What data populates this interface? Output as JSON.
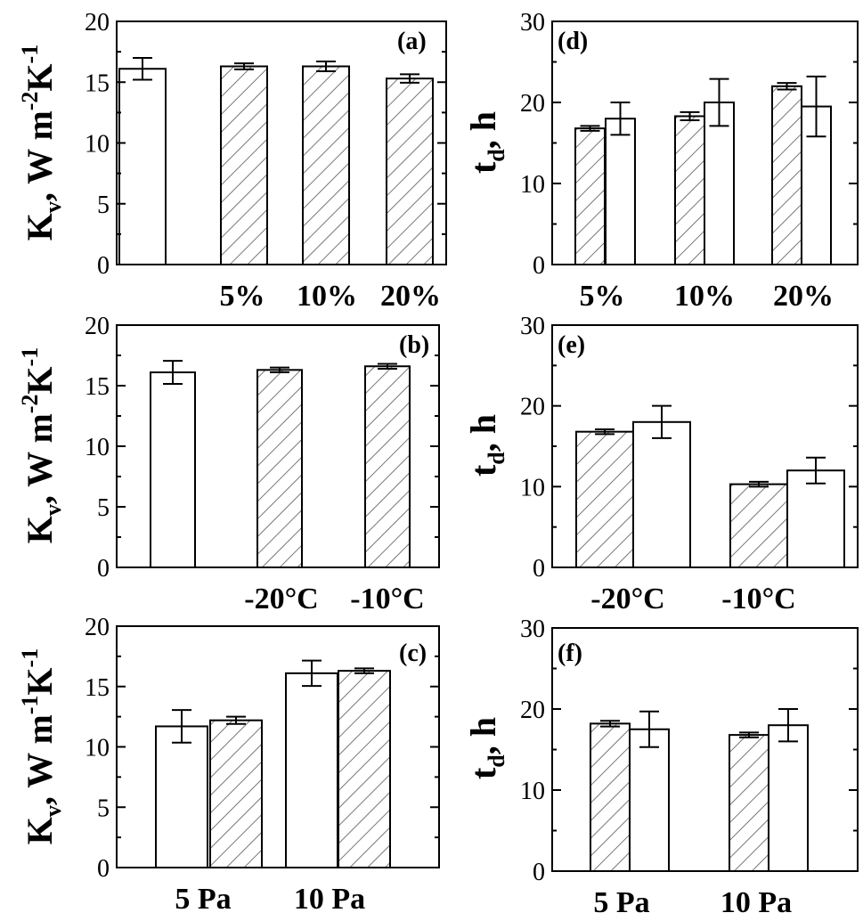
{
  "chart_data": [
    {
      "panel": "(a)",
      "type": "bar",
      "ylabel": {
        "main": "K",
        "sub": "v",
        "mid": ", W m",
        "sup1": "-2",
        "k": "K",
        "sup2": "-1"
      },
      "ylim": [
        0,
        20
      ],
      "yticks": [
        0,
        5,
        10,
        15,
        20
      ],
      "categories": [
        "",
        "5%",
        "10%",
        "20%"
      ],
      "bars": [
        {
          "category": "",
          "value": 16.1,
          "error": 0.9,
          "fill": "plain"
        },
        {
          "category": "5%",
          "value": 16.3,
          "error": 0.25,
          "fill": "hatched"
        },
        {
          "category": "10%",
          "value": 16.3,
          "error": 0.4,
          "fill": "hatched"
        },
        {
          "category": "20%",
          "value": 15.3,
          "error": 0.35,
          "fill": "hatched"
        }
      ]
    },
    {
      "panel": "(b)",
      "type": "bar",
      "ylabel": {
        "main": "K",
        "sub": "v",
        "mid": ", W m",
        "sup1": "-2",
        "k": "K",
        "sup2": "-1"
      },
      "ylim": [
        0,
        20
      ],
      "yticks": [
        0,
        5,
        10,
        15,
        20
      ],
      "categories": [
        "",
        "-20°C",
        "-10°C"
      ],
      "bars": [
        {
          "category": "",
          "value": 16.1,
          "error": 0.95,
          "fill": "plain"
        },
        {
          "category": "-20°C",
          "value": 16.3,
          "error": 0.2,
          "fill": "hatched"
        },
        {
          "category": "-10°C",
          "value": 16.6,
          "error": 0.2,
          "fill": "hatched"
        }
      ]
    },
    {
      "panel": "(c)",
      "type": "bar",
      "ylabel": {
        "main": "K",
        "sub": "v",
        "mid": ", W m",
        "sup1": "-1",
        "k": "K",
        "sup2": "-1"
      },
      "ylim": [
        0,
        20
      ],
      "yticks": [
        0,
        5,
        10,
        15,
        20
      ],
      "categories": [
        "5 Pa",
        "10 Pa"
      ],
      "bars": [
        {
          "category": "5 Pa",
          "value": 11.7,
          "error": 1.35,
          "fill": "plain"
        },
        {
          "category": "5 Pa",
          "value": 12.2,
          "error": 0.3,
          "fill": "hatched"
        },
        {
          "category": "10 Pa",
          "value": 16.1,
          "error": 1.05,
          "fill": "plain"
        },
        {
          "category": "10 Pa",
          "value": 16.3,
          "error": 0.2,
          "fill": "hatched"
        }
      ]
    },
    {
      "panel": "(d)",
      "type": "bar",
      "ylabel": {
        "main": "t",
        "sub": "d",
        "mid": ", h"
      },
      "ylim": [
        0,
        30
      ],
      "yticks": [
        0,
        10,
        20,
        30
      ],
      "categories": [
        "5%",
        "10%",
        "20%"
      ],
      "bars": [
        {
          "category": "5%",
          "value": 16.8,
          "error": 0.3,
          "fill": "hatched"
        },
        {
          "category": "5%",
          "value": 18.0,
          "error": 2.0,
          "fill": "plain"
        },
        {
          "category": "10%",
          "value": 18.3,
          "error": 0.5,
          "fill": "hatched"
        },
        {
          "category": "10%",
          "value": 20.0,
          "error": 2.9,
          "fill": "plain"
        },
        {
          "category": "20%",
          "value": 22.0,
          "error": 0.4,
          "fill": "hatched"
        },
        {
          "category": "20%",
          "value": 19.5,
          "error": 3.7,
          "fill": "plain"
        }
      ]
    },
    {
      "panel": "(e)",
      "type": "bar",
      "ylabel": {
        "main": "t",
        "sub": "d",
        "mid": ", h"
      },
      "ylim": [
        0,
        30
      ],
      "yticks": [
        0,
        10,
        20,
        30
      ],
      "categories": [
        "-20°C",
        "-10°C"
      ],
      "bars": [
        {
          "category": "-20°C",
          "value": 16.8,
          "error": 0.3,
          "fill": "hatched"
        },
        {
          "category": "-20°C",
          "value": 18.0,
          "error": 2.0,
          "fill": "plain"
        },
        {
          "category": "-10°C",
          "value": 10.3,
          "error": 0.3,
          "fill": "hatched"
        },
        {
          "category": "-10°C",
          "value": 12.0,
          "error": 1.6,
          "fill": "plain"
        }
      ]
    },
    {
      "panel": "(f)",
      "type": "bar",
      "ylabel": {
        "main": "t",
        "sub": "d",
        "mid": ", h"
      },
      "ylim": [
        0,
        30
      ],
      "yticks": [
        0,
        10,
        20,
        30
      ],
      "categories": [
        "5 Pa",
        "10 Pa"
      ],
      "bars": [
        {
          "category": "5 Pa",
          "value": 18.2,
          "error": 0.35,
          "fill": "hatched"
        },
        {
          "category": "5 Pa",
          "value": 17.5,
          "error": 2.2,
          "fill": "plain"
        },
        {
          "category": "10 Pa",
          "value": 16.8,
          "error": 0.3,
          "fill": "hatched"
        },
        {
          "category": "10 Pa",
          "value": 18.0,
          "error": 2.0,
          "fill": "plain"
        }
      ]
    }
  ]
}
